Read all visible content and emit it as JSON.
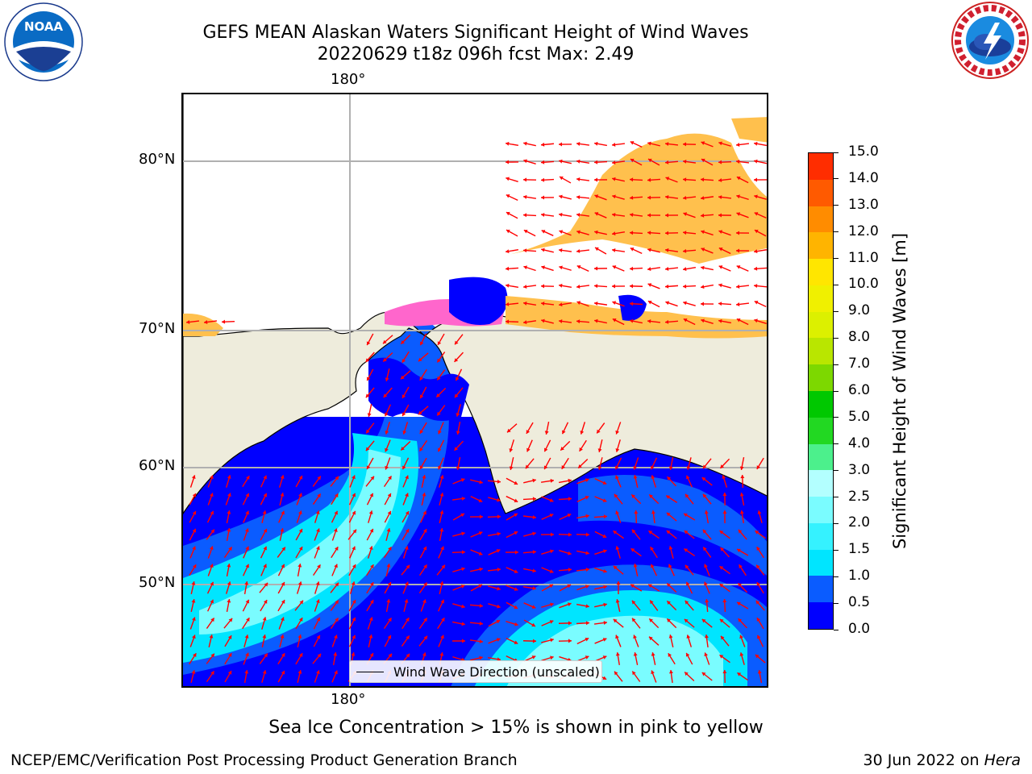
{
  "header": {
    "title_line1": "GEFS MEAN Alaskan Waters Significant Height of Wind Waves",
    "title_line2": "20220629 t18z 096h fcst   Max: 2.49"
  },
  "logos": {
    "noaa": "NOAA",
    "noaa_ring": "NATIONAL OCEANIC AND ATMOSPHERIC ADMINISTRATION • U.S. DEPARTMENT OF COMMERCE",
    "nws_ring": "NATIONAL WEATHER SERVICE"
  },
  "map": {
    "lon_label_top": "180°",
    "lon_label_bottom": "180°",
    "lat_labels": [
      "80°N",
      "70°N",
      "60°N",
      "50°N"
    ],
    "legend_label": "Wind Wave Direction (unscaled)",
    "colors": {
      "land": "#eeecdc",
      "ice_pink": "#ff66cc",
      "ice_yellow": "#ffc04d",
      "arrows": "#ff0000",
      "grid": "#b0b0b0"
    }
  },
  "colorbar": {
    "label": "Significant Height of Wind Waves [m]",
    "ticks": [
      "0.0",
      "0.5",
      "1.0",
      "1.5",
      "2.0",
      "2.5",
      "3.0",
      "4.0",
      "5.0",
      "6.0",
      "7.0",
      "8.0",
      "9.0",
      "10.0",
      "11.0",
      "12.0",
      "13.0",
      "14.0",
      "15.0"
    ],
    "colors": [
      "#0000ff",
      "#0a5cff",
      "#00e5ff",
      "#35f2ff",
      "#7afcff",
      "#b3ffff",
      "#4cf08c",
      "#22d822",
      "#00c800",
      "#7dd800",
      "#b9e600",
      "#dcf000",
      "#f0f000",
      "#ffe600",
      "#ffb400",
      "#ff8c00",
      "#ff5a00",
      "#ff2d00",
      "#ff0000"
    ]
  },
  "footer": {
    "note": "Sea Ice Concentration > 15% is shown in pink to yellow",
    "left": "NCEP/EMC/Verification Post Processing Product Generation Branch",
    "right_date": "30 Jun 2022 on ",
    "right_host": "Hera"
  }
}
